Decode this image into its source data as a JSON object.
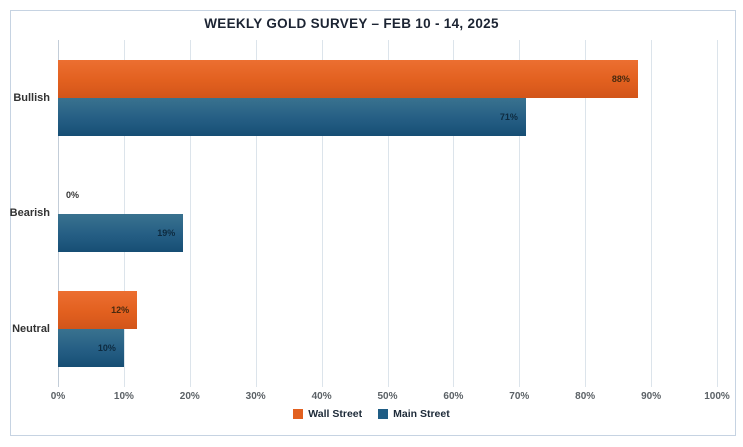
{
  "chart_data": {
    "type": "bar",
    "orientation": "horizontal",
    "title": "WEEKLY GOLD SURVEY – FEB 10 - 14, 2025",
    "categories": [
      "Bullish",
      "Bearish",
      "Neutral"
    ],
    "series": [
      {
        "name": "Wall Street",
        "color": "#e2601f",
        "values": [
          88,
          0,
          12
        ]
      },
      {
        "name": "Main Street",
        "color": "#1f5d85",
        "values": [
          71,
          19,
          10
        ]
      }
    ],
    "data_labels": {
      "Wall Street": [
        "88%",
        "0%",
        "12%"
      ],
      "Main Street": [
        "71%",
        "19%",
        "10%"
      ]
    },
    "value_suffix": "%",
    "xlim": [
      0,
      100
    ],
    "x_tick_labels": [
      "0%",
      "10%",
      "20%",
      "30%",
      "40%",
      "50%",
      "60%",
      "70%",
      "80%",
      "90%",
      "100%"
    ],
    "grid": "vertical",
    "legend_position": "bottom-center",
    "colors": {
      "wall_street_orange": "#e2601f",
      "main_street_blue": "#1f5d85",
      "frame_border": "#c6d3e2",
      "gridline": "#dce4eb",
      "title_text": "#1c2433"
    }
  }
}
